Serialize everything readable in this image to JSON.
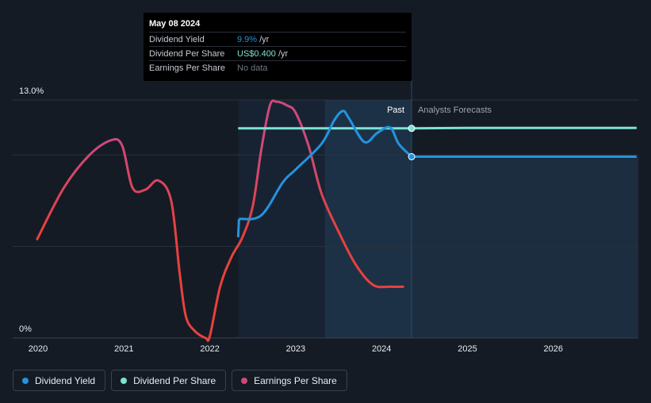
{
  "tooltip": {
    "date": "May 08 2024",
    "rows": [
      {
        "label": "Dividend Yield",
        "value": "9.9%",
        "unit": "/yr"
      },
      {
        "label": "Dividend Per Share",
        "value": "US$0.400",
        "unit": "/yr"
      },
      {
        "label": "Earnings Per Share",
        "value": "No data",
        "unit": ""
      }
    ]
  },
  "chart_data": {
    "type": "line",
    "y_top_label": "13.0%",
    "y_bottom_label": "0%",
    "ylim": [
      0,
      13.0
    ],
    "x_ticks": [
      "2020",
      "2021",
      "2022",
      "2023",
      "2024",
      "2025",
      "2026"
    ],
    "region_labels": {
      "past": "Past",
      "forecast": "Analysts Forecasts"
    },
    "colors": {
      "dividend_yield": "#2394df",
      "dividend_per_share": "#7be3d4",
      "earnings_per_share": "#d0487a",
      "eps_low": "#e8413e",
      "background": "#151b24",
      "forecast_fill": "#1b2d3e"
    },
    "series": [
      {
        "name": "Dividend Yield",
        "x": [
          2022.33,
          2022.34,
          2022.6,
          2022.85,
          2023.0,
          2023.3,
          2023.45,
          2023.55,
          2023.62,
          2023.8,
          2023.95,
          2024.1,
          2024.2,
          2024.35,
          2025.0,
          2026.0,
          2026.97
        ],
        "values": [
          5.5,
          6.5,
          6.7,
          8.5,
          9.2,
          10.6,
          11.9,
          12.4,
          12.0,
          10.7,
          11.2,
          11.5,
          10.6,
          9.9,
          9.9,
          9.9,
          9.9
        ]
      },
      {
        "name": "Dividend Per Share",
        "x": [
          2022.33,
          2023.0,
          2024.0,
          2024.35,
          2025.0,
          2026.0,
          2026.97
        ],
        "values": [
          11.45,
          11.45,
          11.45,
          11.45,
          11.47,
          11.47,
          11.47
        ]
      },
      {
        "name": "Earnings Per Share",
        "x": [
          2019.99,
          2020.3,
          2020.6,
          2020.85,
          2020.98,
          2021.1,
          2021.25,
          2021.4,
          2021.55,
          2021.65,
          2021.72,
          2021.82,
          2021.95,
          2022.0,
          2022.12,
          2022.25,
          2022.38,
          2022.5,
          2022.6,
          2022.7,
          2022.78,
          2022.9,
          2023.0,
          2023.15,
          2023.3,
          2023.5,
          2023.7,
          2023.9,
          2024.1,
          2024.25
        ],
        "values": [
          5.4,
          8.2,
          10.0,
          10.8,
          10.5,
          8.2,
          8.1,
          8.6,
          7.5,
          3.5,
          1.2,
          0.4,
          0.0,
          0.1,
          2.8,
          4.4,
          5.5,
          7.2,
          10.3,
          12.7,
          12.9,
          12.7,
          12.3,
          10.5,
          7.9,
          5.8,
          4.0,
          2.9,
          2.8,
          2.8
        ]
      }
    ],
    "tooltip_date_x": 2024.35
  }
}
